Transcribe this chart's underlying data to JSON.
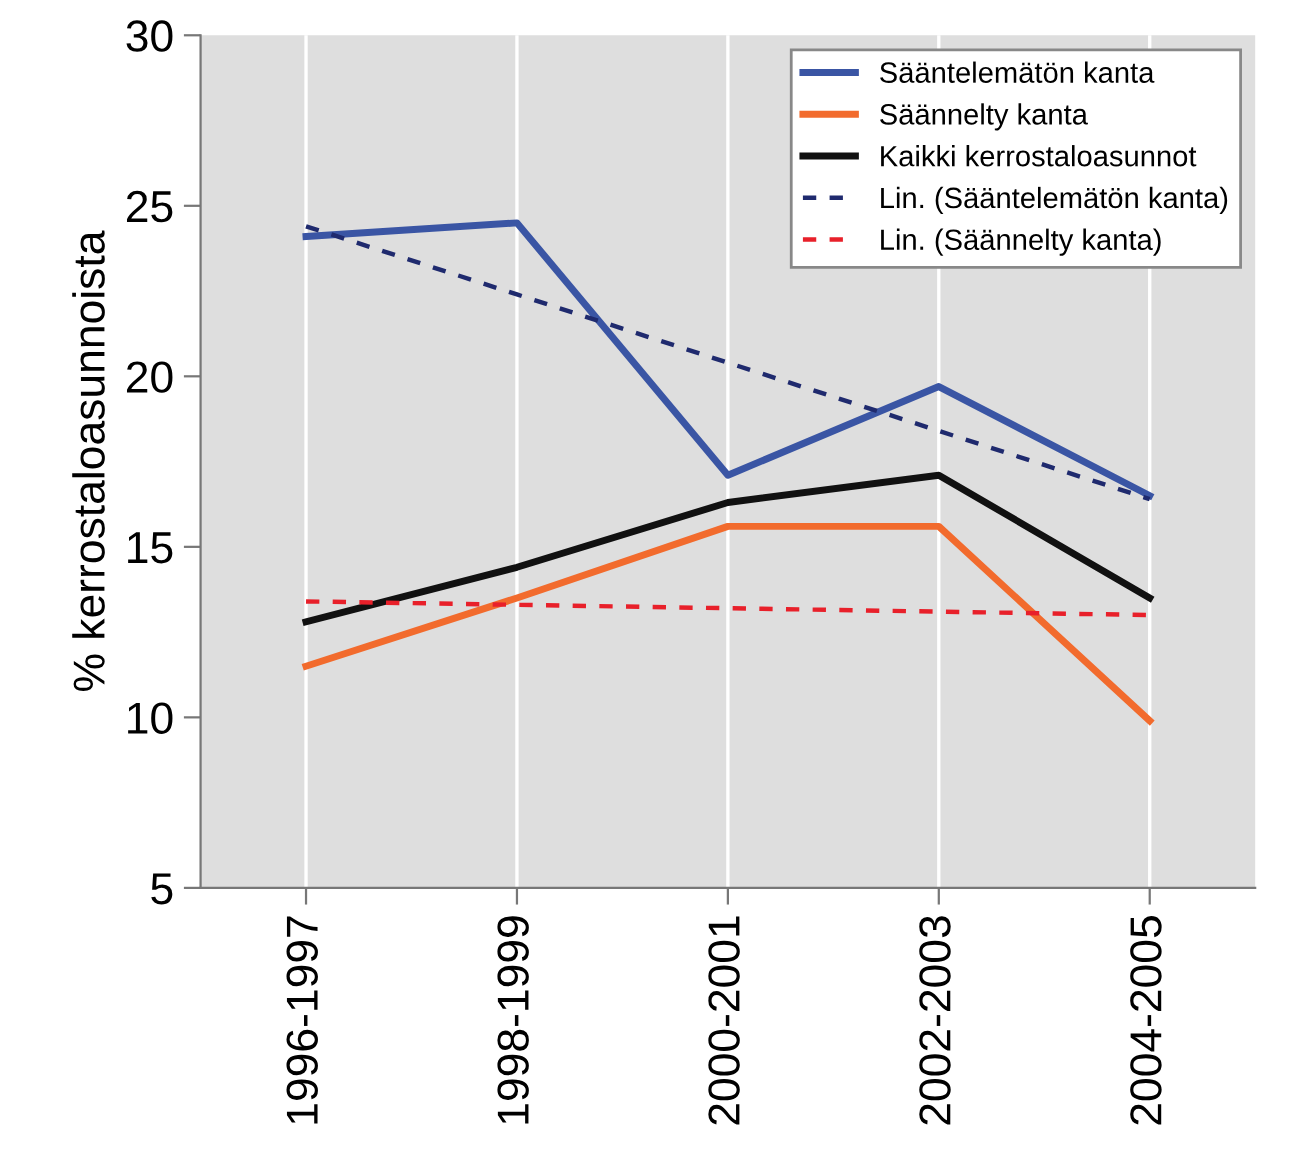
{
  "chart_data": {
    "type": "line",
    "ylabel": "% kerrostaloasunnoista",
    "categories": [
      "1996-1997",
      "1998-1999",
      "2000-2001",
      "2002-2003",
      "2004-2005"
    ],
    "series": [
      {
        "name": "Sääntelemätön kanta",
        "color": "#3a55a4",
        "values": [
          24.1,
          24.5,
          17.1,
          19.7,
          16.5
        ]
      },
      {
        "name": "Säännelty kanta",
        "color": "#f26b2d",
        "values": [
          11.5,
          13.5,
          15.6,
          15.6,
          9.9
        ]
      },
      {
        "name": "Kaikki kerrostaloasunnot",
        "color": "#111111",
        "values": [
          12.8,
          14.4,
          16.3,
          17.1,
          13.5
        ]
      },
      {
        "name": "Lin. (Sääntelemätön kanta)",
        "color": "#1f2a6e",
        "line_style": "dotted",
        "values": [
          24.4,
          22.4,
          20.4,
          18.4,
          16.4
        ]
      },
      {
        "name": "Lin. (Säännelty kanta)",
        "color": "#e8202a",
        "line_style": "dotted",
        "values": [
          13.4,
          13.3,
          13.2,
          13.1,
          13.0
        ]
      }
    ],
    "ylim": [
      5,
      30
    ],
    "yticks": [
      5,
      10,
      15,
      20,
      25,
      30
    ],
    "grid": "x",
    "legend": "top right"
  }
}
